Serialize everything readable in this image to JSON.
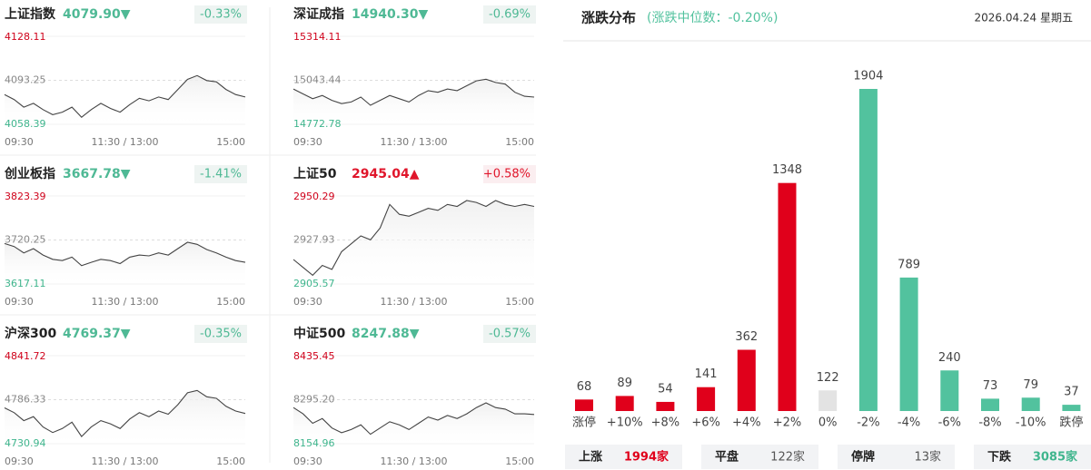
{
  "times": [
    "09:30",
    "11:30 / 13:00",
    "15:00"
  ],
  "indices": [
    {
      "name": "上证指数",
      "value": "4079.90▼",
      "change": "-0.33%",
      "color": "#4fb995",
      "ylim": [
        4058.39,
        4128.11
      ],
      "mid": 4093.25,
      "values": [
        4082,
        4078,
        4072,
        4075,
        4070,
        4066,
        4068,
        4072,
        4064,
        4070,
        4075,
        4071,
        4068,
        4074,
        4079,
        4077,
        4080,
        4078,
        4086,
        4094,
        4097,
        4093,
        4092,
        4086,
        4082,
        4080
      ]
    },
    {
      "name": "深证成指",
      "value": "14940.30▼",
      "change": "-0.69%",
      "color": "#4fb995",
      "ylim": [
        14772.78,
        15314.11
      ],
      "mid": 15043.44,
      "values": [
        14990,
        14960,
        14930,
        14950,
        14920,
        14900,
        14910,
        14940,
        14890,
        14920,
        14950,
        14930,
        14910,
        14950,
        14980,
        14970,
        14990,
        14980,
        15010,
        15040,
        15050,
        15030,
        15020,
        14970,
        14945,
        14940
      ]
    },
    {
      "name": "创业板指",
      "value": "3667.78▼",
      "change": "-1.41%",
      "color": "#4fb995",
      "ylim": [
        3617.11,
        3823.39
      ],
      "mid": 3720.25,
      "values": [
        3712,
        3705,
        3690,
        3700,
        3685,
        3675,
        3672,
        3680,
        3660,
        3668,
        3675,
        3672,
        3665,
        3680,
        3685,
        3683,
        3690,
        3685,
        3700,
        3715,
        3710,
        3698,
        3690,
        3680,
        3672,
        3668
      ]
    },
    {
      "name": "上证50",
      "value": "2945.04▲",
      "change": "+0.58%",
      "color": "#e0162b",
      "ylim": [
        2905.57,
        2950.29
      ],
      "mid": 2927.93,
      "values": [
        2918,
        2914,
        2910,
        2915,
        2913,
        2922,
        2926,
        2930,
        2928,
        2934,
        2946,
        2941,
        2940,
        2942,
        2944,
        2943,
        2946,
        2945,
        2948,
        2947,
        2945,
        2948,
        2946,
        2945,
        2946,
        2945
      ]
    },
    {
      "name": "沪深300",
      "value": "4769.37▼",
      "change": "-0.35%",
      "color": "#4fb995",
      "ylim": [
        4730.94,
        4841.72
      ],
      "mid": 4786.33,
      "values": [
        4776,
        4770,
        4760,
        4765,
        4752,
        4745,
        4750,
        4758,
        4740,
        4752,
        4760,
        4756,
        4750,
        4762,
        4770,
        4765,
        4772,
        4768,
        4780,
        4795,
        4798,
        4790,
        4788,
        4778,
        4772,
        4769
      ]
    },
    {
      "name": "中证500",
      "value": "8247.88▼",
      "change": "-0.57%",
      "color": "#4fb995",
      "ylim": [
        8154.96,
        8435.45
      ],
      "mid": 8295.2,
      "mid_label": "8295.20",
      "values": [
        8270,
        8250,
        8220,
        8235,
        8205,
        8190,
        8200,
        8215,
        8185,
        8205,
        8225,
        8215,
        8200,
        8220,
        8240,
        8230,
        8245,
        8235,
        8250,
        8270,
        8285,
        8270,
        8265,
        8250,
        8250,
        8248
      ]
    }
  ],
  "chart_data": {
    "type": "bar",
    "title": "涨跌分布",
    "subtitle": "(涨跌中位数：-0.20%)",
    "date": "2026.04.24 星期五",
    "categories": [
      "涨停",
      "+10%",
      "+8%",
      "+6%",
      "+4%",
      "+2%",
      "0%",
      "-2%",
      "-4%",
      "-6%",
      "-8%",
      "-10%",
      "跌停"
    ],
    "values": [
      68,
      89,
      54,
      141,
      362,
      1348,
      122,
      1904,
      789,
      240,
      73,
      79,
      37
    ],
    "colors": [
      "#e0001b",
      "#e0001b",
      "#e0001b",
      "#e0001b",
      "#e0001b",
      "#e0001b",
      "#e3e3e3",
      "#52c29e",
      "#52c29e",
      "#52c29e",
      "#52c29e",
      "#52c29e",
      "#52c29e"
    ]
  },
  "summary": [
    {
      "label": "上涨",
      "value": "1994家",
      "color": "#e0001b"
    },
    {
      "label": "平盘",
      "value": "122家",
      "color": "#555555"
    },
    {
      "label": "停牌",
      "value": "13家",
      "color": "#555555"
    },
    {
      "label": "下跌",
      "value": "3085家",
      "color": "#3fb58d"
    }
  ]
}
